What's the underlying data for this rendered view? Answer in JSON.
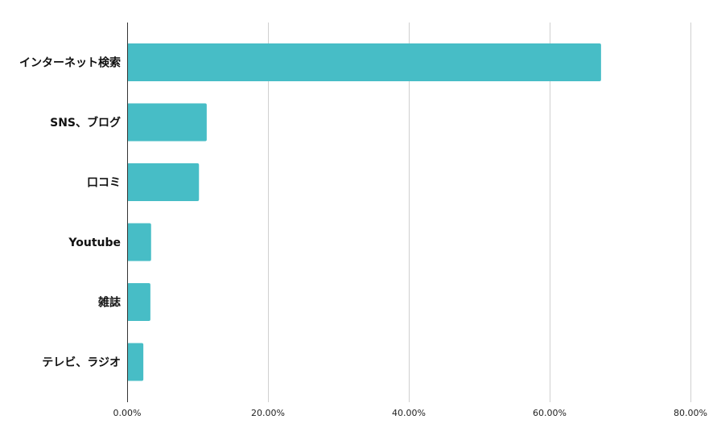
{
  "chart_data": {
    "type": "bar",
    "orientation": "horizontal",
    "title": "",
    "xlabel": "",
    "ylabel": "",
    "categories": [
      "インターネット検索",
      "SNS、ブログ",
      "口コミ",
      "Youtube",
      "雑誌",
      "テレビ、ラジオ"
    ],
    "values": [
      67.3,
      11.3,
      10.2,
      3.4,
      3.3,
      2.3
    ],
    "value_unit": "%",
    "xlim": [
      0,
      80
    ],
    "x_ticks": [
      0,
      20,
      40,
      60,
      80
    ],
    "x_tick_labels": [
      "0.00%",
      "20.00%",
      "40.00%",
      "60.00%",
      "80.00%"
    ],
    "grid": "vertical",
    "legend": "none",
    "bar_color": "#47bdc6"
  }
}
